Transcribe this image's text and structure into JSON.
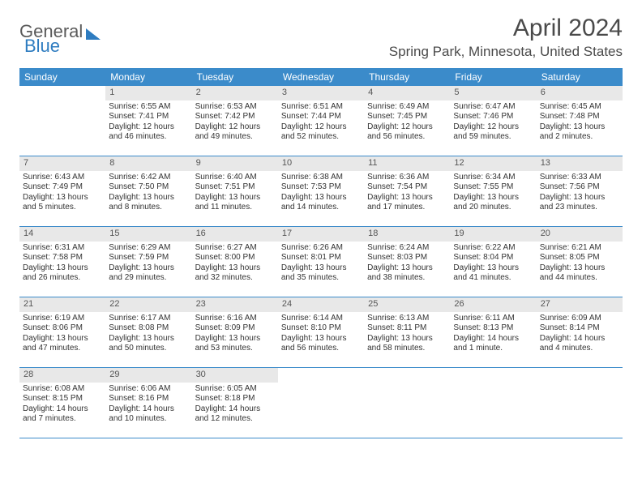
{
  "logo": {
    "part1": "General",
    "part2": "Blue"
  },
  "title": "April 2024",
  "location": "Spring Park, Minnesota, United States",
  "weekdays": [
    "Sunday",
    "Monday",
    "Tuesday",
    "Wednesday",
    "Thursday",
    "Friday",
    "Saturday"
  ],
  "colors": {
    "header_band": "#3b8bca",
    "daynum_bg": "#e8e8e8",
    "text": "#333333",
    "title_text": "#4a4a4a",
    "logo_gray": "#5a5a5a",
    "logo_blue": "#2e7cc0"
  },
  "typography": {
    "title_fontsize": 30,
    "location_fontsize": 17,
    "weekday_fontsize": 12,
    "cell_fontsize": 10
  },
  "layout": {
    "columns": 7,
    "rows": 5,
    "first_day_offset": 1
  },
  "days": [
    {
      "n": 1,
      "sunrise": "6:55 AM",
      "sunset": "7:41 PM",
      "daylight": "12 hours and 46 minutes."
    },
    {
      "n": 2,
      "sunrise": "6:53 AM",
      "sunset": "7:42 PM",
      "daylight": "12 hours and 49 minutes."
    },
    {
      "n": 3,
      "sunrise": "6:51 AM",
      "sunset": "7:44 PM",
      "daylight": "12 hours and 52 minutes."
    },
    {
      "n": 4,
      "sunrise": "6:49 AM",
      "sunset": "7:45 PM",
      "daylight": "12 hours and 56 minutes."
    },
    {
      "n": 5,
      "sunrise": "6:47 AM",
      "sunset": "7:46 PM",
      "daylight": "12 hours and 59 minutes."
    },
    {
      "n": 6,
      "sunrise": "6:45 AM",
      "sunset": "7:48 PM",
      "daylight": "13 hours and 2 minutes."
    },
    {
      "n": 7,
      "sunrise": "6:43 AM",
      "sunset": "7:49 PM",
      "daylight": "13 hours and 5 minutes."
    },
    {
      "n": 8,
      "sunrise": "6:42 AM",
      "sunset": "7:50 PM",
      "daylight": "13 hours and 8 minutes."
    },
    {
      "n": 9,
      "sunrise": "6:40 AM",
      "sunset": "7:51 PM",
      "daylight": "13 hours and 11 minutes."
    },
    {
      "n": 10,
      "sunrise": "6:38 AM",
      "sunset": "7:53 PM",
      "daylight": "13 hours and 14 minutes."
    },
    {
      "n": 11,
      "sunrise": "6:36 AM",
      "sunset": "7:54 PM",
      "daylight": "13 hours and 17 minutes."
    },
    {
      "n": 12,
      "sunrise": "6:34 AM",
      "sunset": "7:55 PM",
      "daylight": "13 hours and 20 minutes."
    },
    {
      "n": 13,
      "sunrise": "6:33 AM",
      "sunset": "7:56 PM",
      "daylight": "13 hours and 23 minutes."
    },
    {
      "n": 14,
      "sunrise": "6:31 AM",
      "sunset": "7:58 PM",
      "daylight": "13 hours and 26 minutes."
    },
    {
      "n": 15,
      "sunrise": "6:29 AM",
      "sunset": "7:59 PM",
      "daylight": "13 hours and 29 minutes."
    },
    {
      "n": 16,
      "sunrise": "6:27 AM",
      "sunset": "8:00 PM",
      "daylight": "13 hours and 32 minutes."
    },
    {
      "n": 17,
      "sunrise": "6:26 AM",
      "sunset": "8:01 PM",
      "daylight": "13 hours and 35 minutes."
    },
    {
      "n": 18,
      "sunrise": "6:24 AM",
      "sunset": "8:03 PM",
      "daylight": "13 hours and 38 minutes."
    },
    {
      "n": 19,
      "sunrise": "6:22 AM",
      "sunset": "8:04 PM",
      "daylight": "13 hours and 41 minutes."
    },
    {
      "n": 20,
      "sunrise": "6:21 AM",
      "sunset": "8:05 PM",
      "daylight": "13 hours and 44 minutes."
    },
    {
      "n": 21,
      "sunrise": "6:19 AM",
      "sunset": "8:06 PM",
      "daylight": "13 hours and 47 minutes."
    },
    {
      "n": 22,
      "sunrise": "6:17 AM",
      "sunset": "8:08 PM",
      "daylight": "13 hours and 50 minutes."
    },
    {
      "n": 23,
      "sunrise": "6:16 AM",
      "sunset": "8:09 PM",
      "daylight": "13 hours and 53 minutes."
    },
    {
      "n": 24,
      "sunrise": "6:14 AM",
      "sunset": "8:10 PM",
      "daylight": "13 hours and 56 minutes."
    },
    {
      "n": 25,
      "sunrise": "6:13 AM",
      "sunset": "8:11 PM",
      "daylight": "13 hours and 58 minutes."
    },
    {
      "n": 26,
      "sunrise": "6:11 AM",
      "sunset": "8:13 PM",
      "daylight": "14 hours and 1 minute."
    },
    {
      "n": 27,
      "sunrise": "6:09 AM",
      "sunset": "8:14 PM",
      "daylight": "14 hours and 4 minutes."
    },
    {
      "n": 28,
      "sunrise": "6:08 AM",
      "sunset": "8:15 PM",
      "daylight": "14 hours and 7 minutes."
    },
    {
      "n": 29,
      "sunrise": "6:06 AM",
      "sunset": "8:16 PM",
      "daylight": "14 hours and 10 minutes."
    },
    {
      "n": 30,
      "sunrise": "6:05 AM",
      "sunset": "8:18 PM",
      "daylight": "14 hours and 12 minutes."
    }
  ]
}
